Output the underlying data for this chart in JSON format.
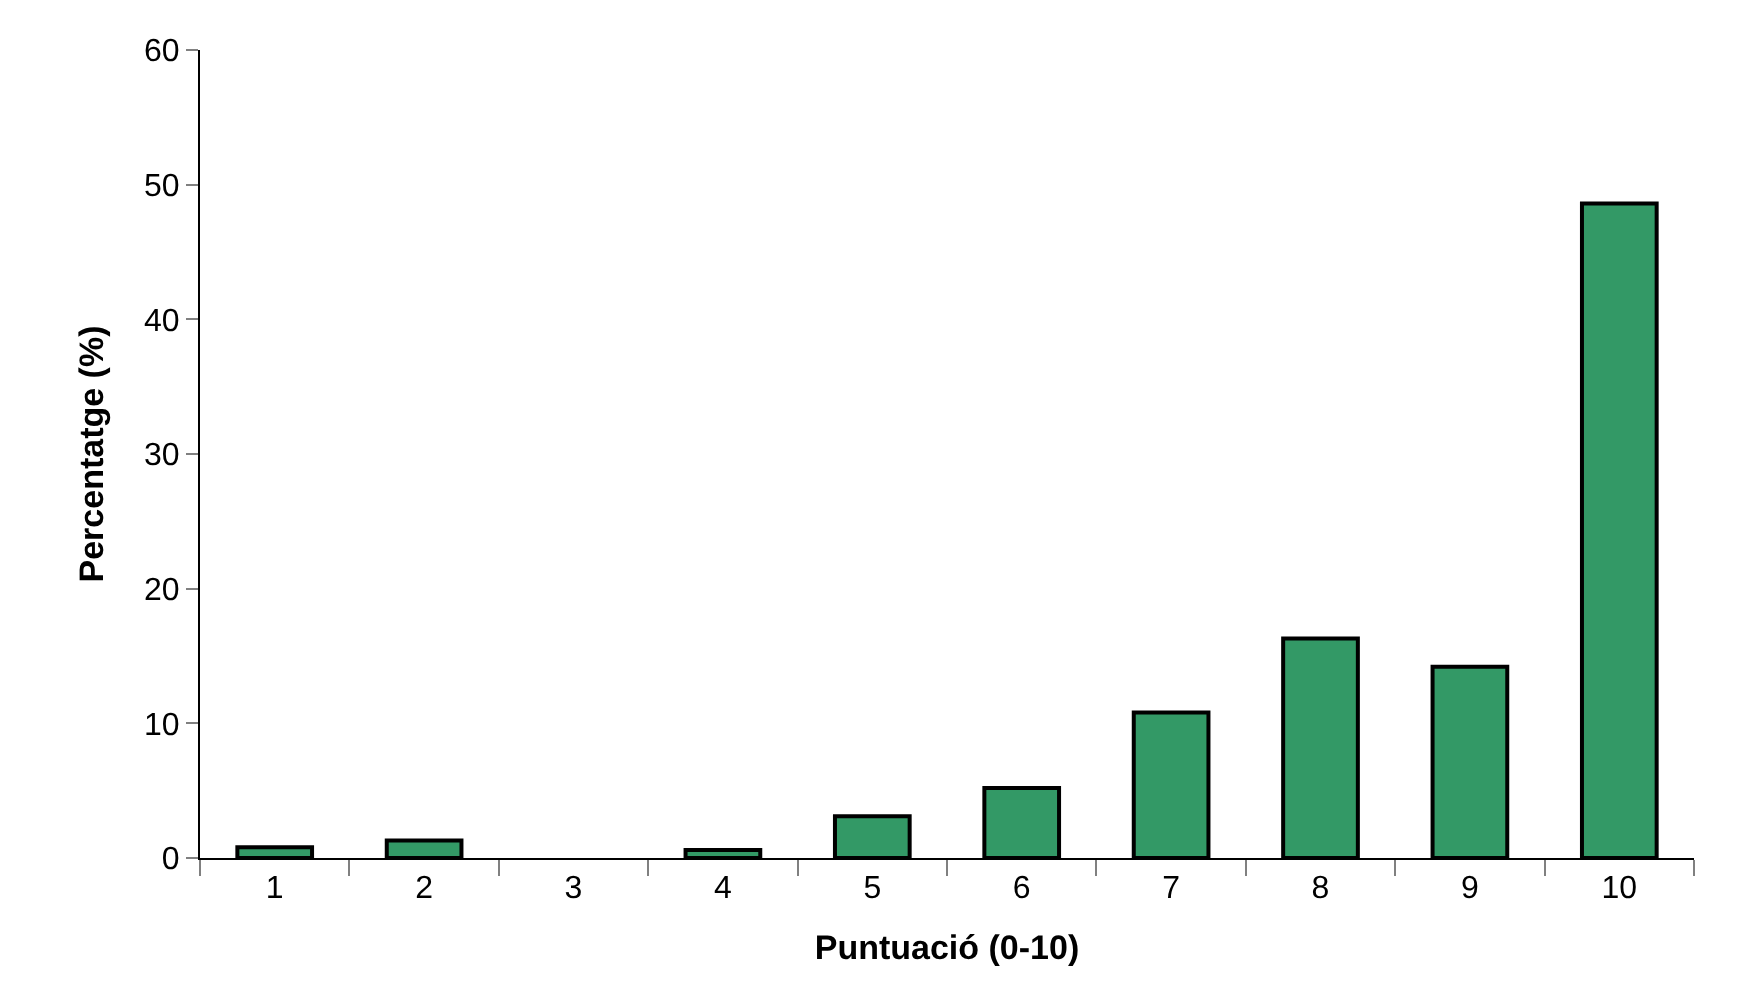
{
  "chart_data": {
    "type": "bar",
    "xlabel": "Puntuació (0-10)",
    "ylabel": "Percentatge (%)",
    "categories": [
      "1",
      "2",
      "3",
      "4",
      "5",
      "6",
      "7",
      "8",
      "9",
      "10"
    ],
    "values": [
      0.8,
      1.3,
      0,
      0.6,
      3.1,
      5.2,
      10.8,
      16.3,
      14.2,
      48.6
    ],
    "color": "#339966",
    "ylim": [
      0,
      60
    ],
    "yticks": [
      0,
      10,
      20,
      30,
      40,
      50,
      60
    ],
    "legend": false
  }
}
